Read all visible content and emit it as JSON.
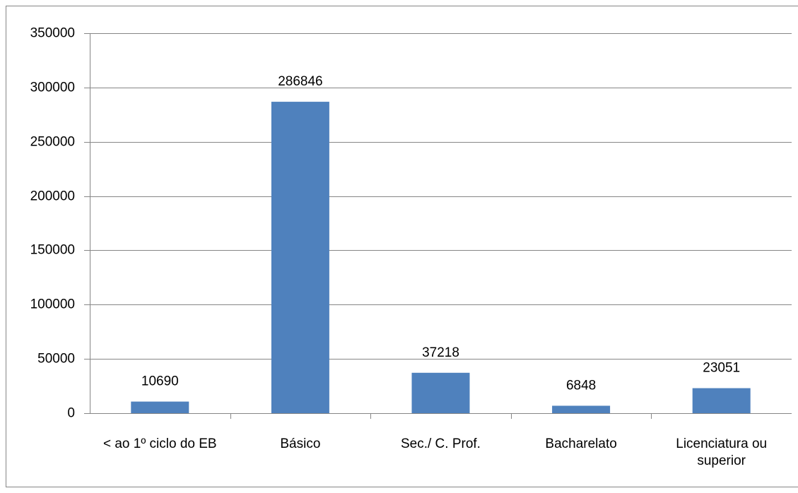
{
  "chart_data": {
    "type": "bar",
    "categories": [
      "< ao 1º ciclo do EB",
      "Básico",
      "Sec./ C. Prof.",
      "Bacharelato",
      "Licenciatura ou superior"
    ],
    "values": [
      10690,
      286846,
      37218,
      6848,
      23051
    ],
    "color": "#4f81bd",
    "ylim": [
      0,
      350000
    ],
    "yticks": [
      0,
      50000,
      100000,
      150000,
      200000,
      250000,
      300000,
      350000
    ],
    "grid": true
  }
}
